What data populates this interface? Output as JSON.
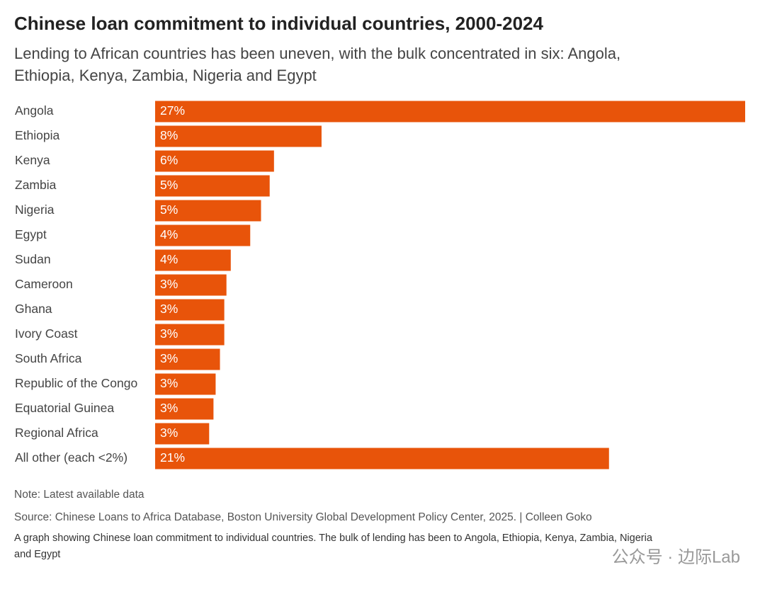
{
  "chart_data": {
    "type": "bar",
    "orientation": "horizontal",
    "title": "Chinese loan commitment to individual countries, 2000-2024",
    "subtitle": [
      "Lending to African countries has been uneven, with the bulk concentrated in six: Angola,",
      "Ethiopia, Kenya, Zambia, Nigeria and Egypt"
    ],
    "categories": [
      "Angola",
      "Ethiopia",
      "Kenya",
      "Zambia",
      "Nigeria",
      "Egypt",
      "Sudan",
      "Cameroon",
      "Ghana",
      "Ivory Coast",
      "South Africa",
      "Republic of the Congo",
      "Equatorial Guinea",
      "Regional Africa",
      "All other (each <2%)"
    ],
    "values": [
      27.3,
      7.7,
      5.5,
      5.3,
      4.9,
      4.4,
      3.5,
      3.3,
      3.2,
      3.2,
      3.0,
      2.8,
      2.7,
      2.5,
      21.0
    ],
    "value_labels": [
      "27%",
      "8%",
      "6%",
      "5%",
      "5%",
      "4%",
      "4%",
      "3%",
      "3%",
      "3%",
      "3%",
      "3%",
      "3%",
      "3%",
      "21%"
    ],
    "color": "#e8540a",
    "xlim": [
      0,
      27.3
    ],
    "note": "Note: Latest available data",
    "source": "Source: Chinese Loans to Africa Database, Boston University Global Development Policy Center, 2025. | Colleen Goko",
    "caption": [
      "A graph showing Chinese loan commitment to individual countries. The bulk of lending has been to Angola, Ethiopia, Kenya, Zambia, Nigeria",
      "and Egypt"
    ],
    "watermark": "公众号 · 边际Lab"
  }
}
